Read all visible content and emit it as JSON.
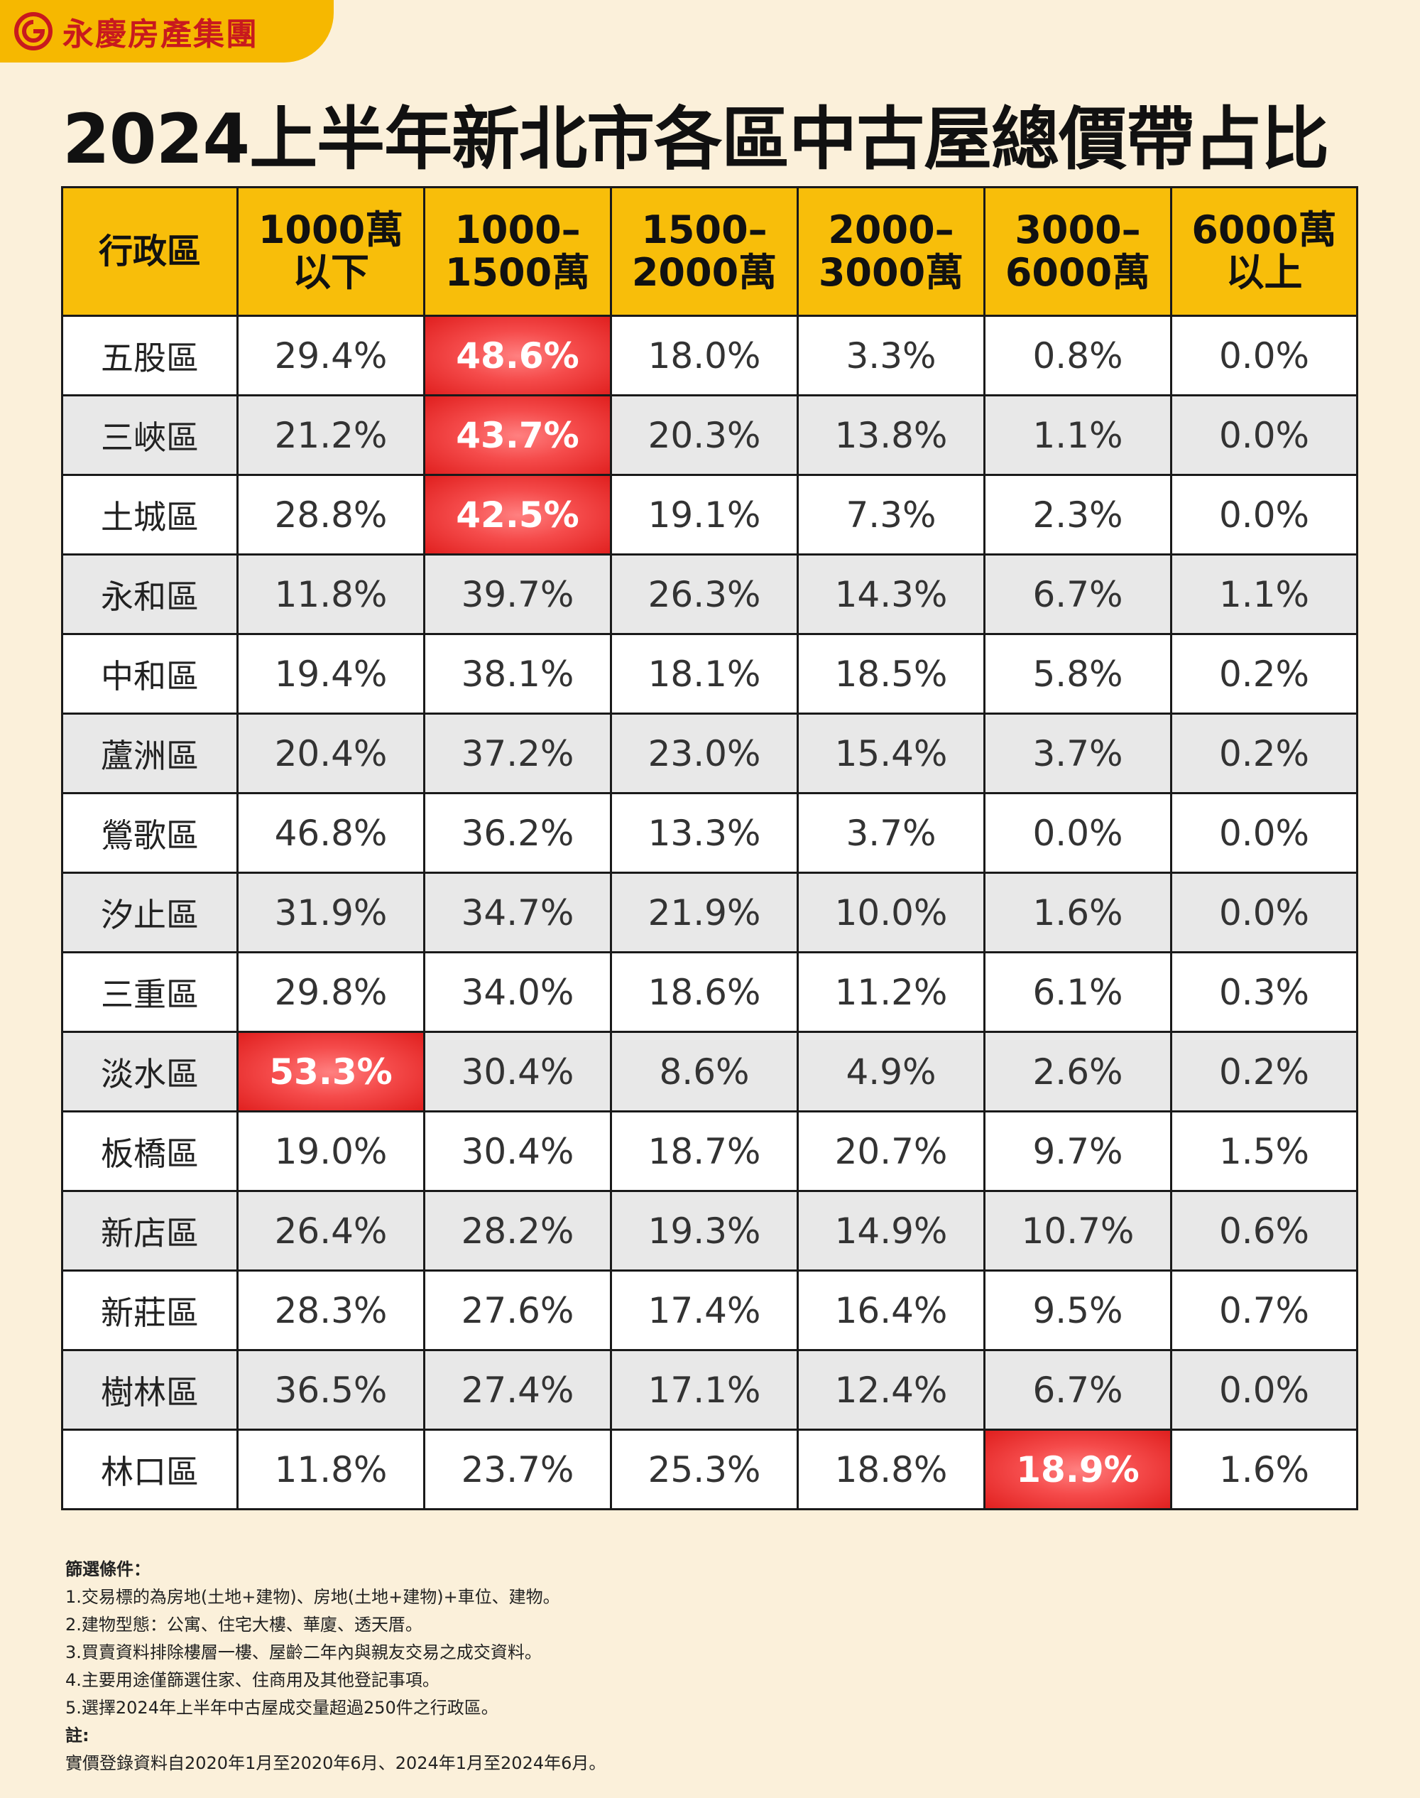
{
  "brand": {
    "name": "永慶房產集團"
  },
  "title": "2024上半年新北市各區中古屋總價帶占比",
  "table": {
    "headers": [
      [
        "行政區"
      ],
      [
        "1000萬",
        "以下"
      ],
      [
        "1000–",
        "1500萬"
      ],
      [
        "1500–",
        "2000萬"
      ],
      [
        "2000–",
        "3000萬"
      ],
      [
        "3000–",
        "6000萬"
      ],
      [
        "6000萬",
        "以上"
      ]
    ],
    "rows": [
      {
        "district": "五股區",
        "values": [
          "29.4%",
          "48.6%",
          "18.0%",
          "3.3%",
          "0.8%",
          "0.0%"
        ],
        "highlight": 1
      },
      {
        "district": "三峽區",
        "values": [
          "21.2%",
          "43.7%",
          "20.3%",
          "13.8%",
          "1.1%",
          "0.0%"
        ],
        "highlight": 1
      },
      {
        "district": "土城區",
        "values": [
          "28.8%",
          "42.5%",
          "19.1%",
          "7.3%",
          "2.3%",
          "0.0%"
        ],
        "highlight": 1
      },
      {
        "district": "永和區",
        "values": [
          "11.8%",
          "39.7%",
          "26.3%",
          "14.3%",
          "6.7%",
          "1.1%"
        ],
        "highlight": -1
      },
      {
        "district": "中和區",
        "values": [
          "19.4%",
          "38.1%",
          "18.1%",
          "18.5%",
          "5.8%",
          "0.2%"
        ],
        "highlight": -1
      },
      {
        "district": "蘆洲區",
        "values": [
          "20.4%",
          "37.2%",
          "23.0%",
          "15.4%",
          "3.7%",
          "0.2%"
        ],
        "highlight": -1
      },
      {
        "district": "鶯歌區",
        "values": [
          "46.8%",
          "36.2%",
          "13.3%",
          "3.7%",
          "0.0%",
          "0.0%"
        ],
        "highlight": -1
      },
      {
        "district": "汐止區",
        "values": [
          "31.9%",
          "34.7%",
          "21.9%",
          "10.0%",
          "1.6%",
          "0.0%"
        ],
        "highlight": -1
      },
      {
        "district": "三重區",
        "values": [
          "29.8%",
          "34.0%",
          "18.6%",
          "11.2%",
          "6.1%",
          "0.3%"
        ],
        "highlight": -1
      },
      {
        "district": "淡水區",
        "values": [
          "53.3%",
          "30.4%",
          "8.6%",
          "4.9%",
          "2.6%",
          "0.2%"
        ],
        "highlight": 0
      },
      {
        "district": "板橋區",
        "values": [
          "19.0%",
          "30.4%",
          "18.7%",
          "20.7%",
          "9.7%",
          "1.5%"
        ],
        "highlight": -1
      },
      {
        "district": "新店區",
        "values": [
          "26.4%",
          "28.2%",
          "19.3%",
          "14.9%",
          "10.7%",
          "0.6%"
        ],
        "highlight": -1
      },
      {
        "district": "新莊區",
        "values": [
          "28.3%",
          "27.6%",
          "17.4%",
          "16.4%",
          "9.5%",
          "0.7%"
        ],
        "highlight": -1
      },
      {
        "district": "樹林區",
        "values": [
          "36.5%",
          "27.4%",
          "17.1%",
          "12.4%",
          "6.7%",
          "0.0%"
        ],
        "highlight": -1
      },
      {
        "district": "林口區",
        "values": [
          "11.8%",
          "23.7%",
          "25.3%",
          "18.8%",
          "18.9%",
          "1.6%"
        ],
        "highlight": 4
      }
    ]
  },
  "notes": {
    "filter_title": "篩選條件：",
    "filters": [
      "1.交易標的為房地(土地+建物)、房地(土地+建物)+車位、建物。",
      "2.建物型態：公寓、住宅大樓、華廈、透天厝。",
      "3.買賣資料排除樓層一樓、屋齡二年內與親友交易之成交資料。",
      "4.主要用途僅篩選住家、住商用及其他登記事項。",
      "5.選擇2024年上半年中古屋成交量超過250件之行政區。"
    ],
    "remark_title": "註:",
    "remark": "實價登錄資料自2020年1月至2020年6月、2024年1月至2024年6月。"
  },
  "colors": {
    "header_bg": "#F8BE0A",
    "highlight": "#F54B4B",
    "page_bg": "#FBF0DA",
    "brand_red": "#C8191E"
  }
}
